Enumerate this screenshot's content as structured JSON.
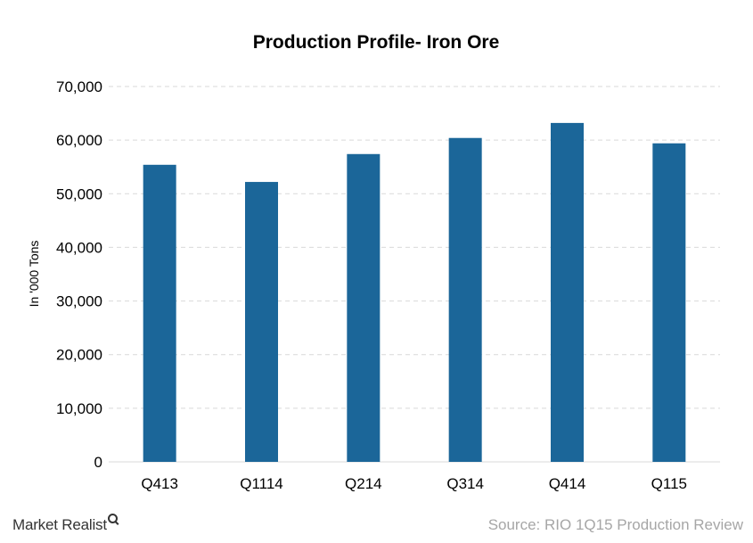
{
  "chart_data": {
    "type": "bar",
    "title": "Production Profile- Iron Ore",
    "xlabel": "",
    "ylabel": "In '000 Tons",
    "categories": [
      "Q413",
      "Q1114",
      "Q214",
      "Q314",
      "Q414",
      "Q115"
    ],
    "values": [
      55400,
      52200,
      57400,
      60400,
      63200,
      59400
    ],
    "ylim": [
      0,
      70000
    ],
    "yticks": [
      0,
      10000,
      20000,
      30000,
      40000,
      50000,
      60000,
      70000
    ],
    "ytick_labels": [
      "0",
      "10,000",
      "20,000",
      "30,000",
      "40,000",
      "50,000",
      "60,000",
      "70,000"
    ],
    "grid": true,
    "legend": "none",
    "bar_color": "#1b6699"
  },
  "footer": {
    "brand": "Market Realist",
    "brand_icon": "magnifier-icon",
    "source": "Source: RIO 1Q15 Production Review"
  }
}
